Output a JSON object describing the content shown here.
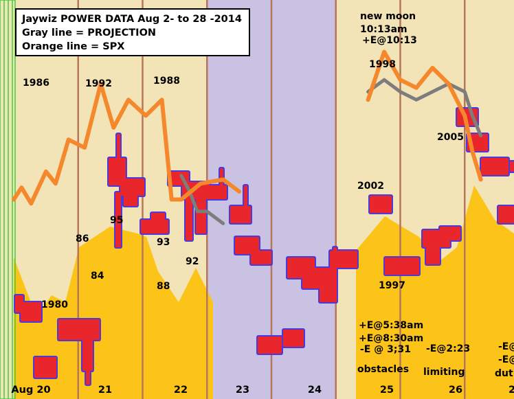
{
  "legend": {
    "lines": [
      "Jaywiz POWER DATA Aug 2- to 28 -2014",
      "Gray line = PROJECTION",
      "Orange line = SPX"
    ]
  },
  "colors": {
    "gold": "#fcc418",
    "cream": "#f3e4b7",
    "lavender": "#c9c2e2",
    "divider": "#b5765a",
    "orange_line": "#f5882c",
    "gray_line": "#7d7d7d",
    "blob_fill": "#e8262b",
    "blob_border": "#4b3ad7",
    "edge_green": "#3ccf3c"
  },
  "chart_data": {
    "type": "line",
    "x_labels": [
      "Aug 20",
      "21",
      "22",
      "23",
      "24",
      "25",
      "26",
      "2"
    ],
    "x_range": [
      19.5,
      27.5
    ],
    "series": [
      {
        "name": "SPX",
        "color": "#f5882c",
        "x": [
          19.5,
          19.62,
          19.77,
          20.0,
          20.15,
          20.35,
          20.6,
          20.85,
          21.05,
          21.28,
          21.55,
          21.8,
          21.95,
          22.1,
          22.4,
          22.75,
          23.0
        ],
        "y": [
          0.5,
          0.47,
          0.51,
          0.43,
          0.46,
          0.35,
          0.37,
          0.21,
          0.32,
          0.25,
          0.29,
          0.25,
          0.5,
          0.5,
          0.46,
          0.45,
          0.48
        ]
      },
      {
        "name": "PROJECTION",
        "color": "#7d7d7d",
        "x": [
          22.1,
          22.23,
          22.35,
          22.5,
          22.75
        ],
        "y": [
          0.44,
          0.48,
          0.53,
          0.53,
          0.56
        ]
      },
      {
        "name": "SPX",
        "color": "#f5882c",
        "x": [
          25.0,
          25.25,
          25.5,
          25.75,
          26.0,
          26.25,
          26.5,
          26.62,
          26.75
        ],
        "y": [
          0.25,
          0.13,
          0.2,
          0.22,
          0.17,
          0.21,
          0.29,
          0.38,
          0.45
        ]
      },
      {
        "name": "PROJECTION",
        "color": "#7d7d7d",
        "x": [
          25.0,
          25.25,
          25.5,
          25.75,
          26.0,
          26.25,
          26.5,
          26.62,
          26.75
        ],
        "y": [
          0.23,
          0.2,
          0.23,
          0.25,
          0.23,
          0.21,
          0.23,
          0.29,
          0.34
        ]
      }
    ],
    "shaded_days": [
      "23",
      "24"
    ],
    "annotations": [
      "1986",
      "1992",
      "1988",
      "95",
      "86",
      "84",
      "93",
      "88",
      "92",
      "1980",
      "new moon",
      "10:13am",
      "+E@10:13",
      "1998",
      "2005",
      "2002",
      "1997",
      "+E@5:38am",
      "+E@8:30am",
      "-E @ 3;31",
      "-E@2:23",
      "-E@",
      "-E@",
      "obstacles",
      "limiting",
      "dut"
    ]
  }
}
